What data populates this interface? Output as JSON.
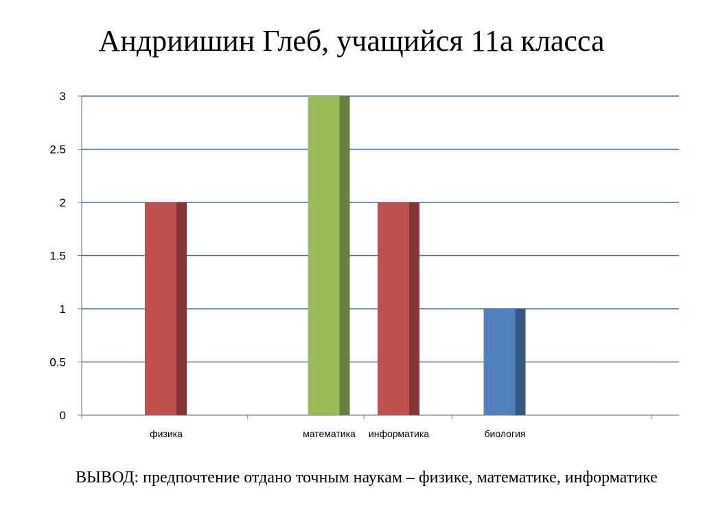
{
  "slide": {
    "title": "Андриишин Глеб, учащийся 11а класса",
    "conclusion": "ВЫВОД: предпочтение отдано точным наукам – физике, математике, информатике"
  },
  "chart_data": {
    "type": "bar",
    "style": "3d-column",
    "categories": [
      "физика",
      "математика",
      "информатика",
      "биология"
    ],
    "values": [
      2,
      3,
      2,
      1
    ],
    "bar_colors": [
      "#c0504d",
      "#9bbb59",
      "#c0504d",
      "#4f81bd"
    ],
    "ylim": [
      0,
      3
    ],
    "yticks": [
      "0",
      "0.5",
      "1",
      "1.5",
      "2",
      "2.5",
      "3"
    ],
    "grid": true,
    "legend": "none",
    "gridline_color": "#4a6e9a"
  }
}
